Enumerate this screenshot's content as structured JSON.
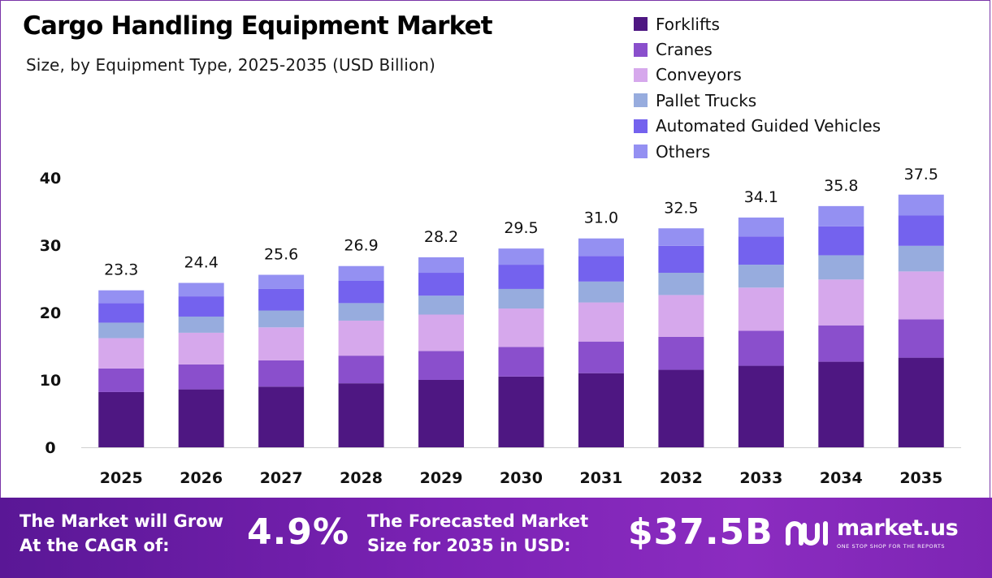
{
  "header": {
    "title": "Cargo Handling Equipment Market",
    "subtitle": "Size, by Equipment Type, 2025-2035 (USD Billion)"
  },
  "legend": [
    {
      "label": "Forklifts",
      "color": "#4e1782"
    },
    {
      "label": "Cranes",
      "color": "#8a4fcc"
    },
    {
      "label": "Conveyors",
      "color": "#d6a8ec"
    },
    {
      "label": "Pallet Trucks",
      "color": "#97acde"
    },
    {
      "label": "Automated Guided Vehicles",
      "color": "#7462ee"
    },
    {
      "label": "Others",
      "color": "#9490f2"
    }
  ],
  "chart_data": {
    "type": "bar",
    "stacked": true,
    "categories": [
      "2025",
      "2026",
      "2027",
      "2028",
      "2029",
      "2030",
      "2031",
      "2032",
      "2033",
      "2034",
      "2035"
    ],
    "series": [
      {
        "name": "Forklifts",
        "color": "#4e1782",
        "values": [
          8.2,
          8.6,
          9.0,
          9.5,
          10.0,
          10.5,
          11.0,
          11.5,
          12.1,
          12.7,
          13.3
        ]
      },
      {
        "name": "Cranes",
        "color": "#8a4fcc",
        "values": [
          3.5,
          3.7,
          3.9,
          4.1,
          4.3,
          4.4,
          4.7,
          4.9,
          5.2,
          5.4,
          5.7
        ]
      },
      {
        "name": "Conveyors",
        "color": "#d6a8ec",
        "values": [
          4.5,
          4.7,
          4.9,
          5.2,
          5.4,
          5.7,
          5.8,
          6.2,
          6.4,
          6.8,
          7.1
        ]
      },
      {
        "name": "Pallet Trucks",
        "color": "#97acde",
        "values": [
          2.3,
          2.4,
          2.5,
          2.6,
          2.8,
          2.9,
          3.1,
          3.3,
          3.4,
          3.6,
          3.8
        ]
      },
      {
        "name": "Automated Guided Vehicles",
        "color": "#7462ee",
        "values": [
          2.9,
          3.0,
          3.2,
          3.3,
          3.4,
          3.6,
          3.8,
          4.0,
          4.2,
          4.3,
          4.5
        ]
      },
      {
        "name": "Others",
        "color": "#9490f2",
        "values": [
          1.9,
          2.0,
          2.1,
          2.2,
          2.3,
          2.4,
          2.6,
          2.6,
          2.8,
          3.0,
          3.1
        ]
      }
    ],
    "totals": [
      23.3,
      24.4,
      25.6,
      26.9,
      28.2,
      29.5,
      31.0,
      32.5,
      34.1,
      35.8,
      37.5
    ],
    "total_labels": [
      "23.3",
      "24.4",
      "25.6",
      "26.9",
      "28.2",
      "29.5",
      "31.0",
      "32.5",
      "34.1",
      "35.8",
      "37.5"
    ],
    "yticks": [
      0,
      10,
      20,
      30,
      40
    ],
    "ylim": [
      0,
      40
    ],
    "grid": false,
    "legend_position": "top-right"
  },
  "footer": {
    "cagr_text_line1": "The Market will Grow",
    "cagr_text_line2": "At the CAGR of:",
    "cagr_value": "4.9%",
    "forecast_text_line1": "The Forecasted Market",
    "forecast_text_line2": "Size for 2035 in USD:",
    "forecast_value": "$37.5B",
    "brand_name": "market.us",
    "brand_tagline": "ONE STOP SHOP FOR THE REPORTS"
  }
}
